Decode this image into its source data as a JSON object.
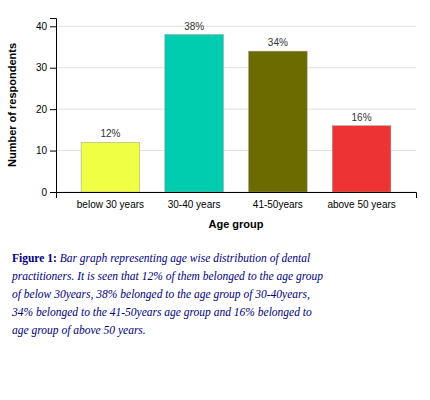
{
  "chart_data": {
    "type": "bar",
    "categories": [
      "below 30 years",
      "30-40  years",
      "41-50years",
      "above 50 years"
    ],
    "values": [
      12,
      38,
      34,
      16
    ],
    "value_labels": [
      "12%",
      "38%",
      "34%",
      "16%"
    ],
    "colors": [
      "#EEFF44",
      "#00CDB0",
      "#6B6B00",
      "#EE3333"
    ],
    "xlabel": "Age group",
    "ylabel": "Number of respondents",
    "ylim": [
      0,
      42
    ],
    "yticks": [
      0,
      10,
      20,
      30,
      40
    ],
    "grid": true,
    "data_labels": true,
    "caption": [
      "Figure 1: Bar graph representing age wise distribution of dental",
      "practitioners. It is seen that 12% of them belonged to the age group",
      "of below 30years, 38% belonged to the age group of 30-40years,",
      "34% belonged to the 41-50years age group  and 16% belonged to",
      "age group of above 50 years."
    ]
  }
}
